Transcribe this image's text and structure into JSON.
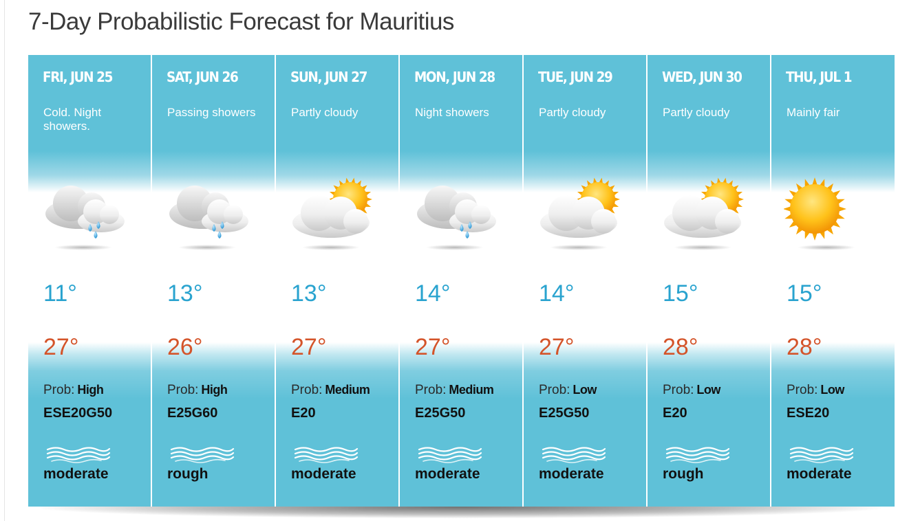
{
  "page": {
    "title": "7-Day Probabilistic Forecast for Mauritius"
  },
  "labels": {
    "prob_prefix": "Prob:"
  },
  "colors": {
    "panel_blue": "#5fc1d8",
    "low_temp": "#29a3cf",
    "high_temp": "#d4542a"
  },
  "days": [
    {
      "day": "FRI, JUN 25",
      "description": "Cold. Night showers.",
      "icon": "cloud-rain-icon",
      "low": "11°",
      "high": "27°",
      "prob": "High",
      "wind": "ESE20G50",
      "sea": "moderate"
    },
    {
      "day": "SAT, JUN 26",
      "description": "Passing showers",
      "icon": "cloud-rain-icon",
      "low": "13°",
      "high": "26°",
      "prob": "High",
      "wind": "E25G60",
      "sea": "rough"
    },
    {
      "day": "SUN, JUN 27",
      "description": "Partly cloudy",
      "icon": "partly-cloudy-icon",
      "low": "13°",
      "high": "27°",
      "prob": "Medium",
      "wind": "E20",
      "sea": "moderate"
    },
    {
      "day": "MON, JUN 28",
      "description": "Night showers",
      "icon": "cloud-rain-icon",
      "low": "14°",
      "high": "27°",
      "prob": "Medium",
      "wind": "E25G50",
      "sea": "moderate"
    },
    {
      "day": "TUE, JUN 29",
      "description": "Partly cloudy",
      "icon": "partly-cloudy-icon",
      "low": "14°",
      "high": "27°",
      "prob": "Low",
      "wind": "E25G50",
      "sea": "moderate"
    },
    {
      "day": "WED, JUN 30",
      "description": "Partly cloudy",
      "icon": "partly-cloudy-icon",
      "low": "15°",
      "high": "28°",
      "prob": "Low",
      "wind": "E20",
      "sea": "rough"
    },
    {
      "day": "THU, JUL 1",
      "description": "Mainly fair",
      "icon": "sun-icon",
      "low": "15°",
      "high": "28°",
      "prob": "Low",
      "wind": "ESE20",
      "sea": "moderate"
    }
  ]
}
